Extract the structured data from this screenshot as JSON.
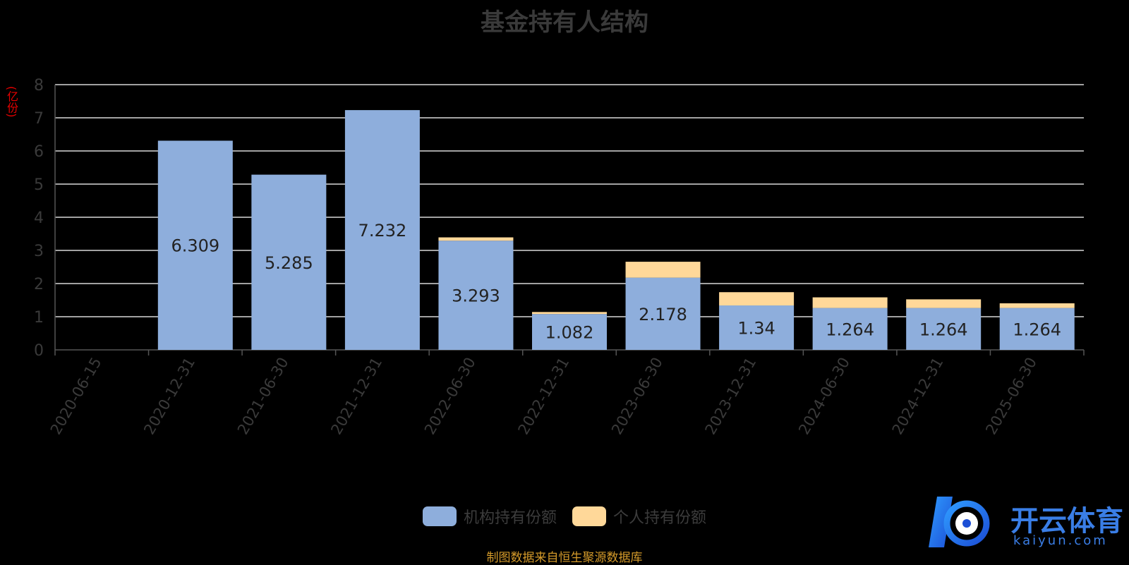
{
  "chart_data": {
    "type": "bar",
    "stacked": true,
    "title": "基金持有人结构",
    "ylabel": "(亿份)",
    "ylim": [
      0,
      8
    ],
    "yticks": [
      0,
      1,
      2,
      3,
      4,
      5,
      6,
      7,
      8
    ],
    "grid": true,
    "legend_position": "bottom",
    "categories": [
      "2020-06-15",
      "2020-12-31",
      "2021-06-30",
      "2021-12-31",
      "2022-06-30",
      "2022-12-31",
      "2023-06-30",
      "2023-12-31",
      "2024-06-30",
      "2024-12-31",
      "2025-06-30"
    ],
    "series": [
      {
        "name": "机构持有份额",
        "color": "#8eaedc",
        "values": [
          0,
          6.309,
          5.285,
          7.232,
          3.293,
          1.082,
          2.178,
          1.34,
          1.264,
          1.264,
          1.264
        ],
        "labels": [
          "",
          "6.309",
          "5.285",
          "7.232",
          "3.293",
          "1.082",
          "2.178",
          "1.34",
          "1.264",
          "1.264",
          "1.264"
        ]
      },
      {
        "name": "个人持有份额",
        "color": "#ffd899",
        "values": [
          0,
          0,
          0,
          0,
          0.1,
          0.06,
          0.48,
          0.4,
          0.32,
          0.26,
          0.14
        ]
      }
    ]
  },
  "source_note": "制图数据来自恒生聚源数据库",
  "watermark": {
    "brand": "开云体育",
    "domain": "kaiyun.com"
  }
}
